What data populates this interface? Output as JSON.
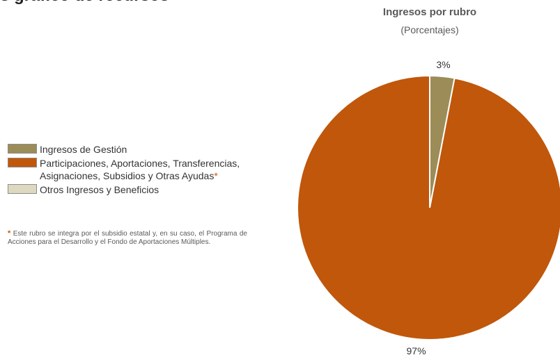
{
  "page": {
    "heading_fragment": "s gráfico de recursos"
  },
  "chart_data": {
    "type": "pie",
    "title": "Ingresos por rubro",
    "subtitle": "(Porcentajes)",
    "categories": [
      "Ingresos de Gestión",
      "Participaciones, Aportaciones, Transferencias, Asignaciones, Subsidios y Otras Ayudas*",
      "Otros Ingresos y Beneficios"
    ],
    "values": [
      3,
      97,
      0
    ],
    "data_labels": [
      "3%",
      "97%",
      ""
    ],
    "colors": [
      "#9c8c58",
      "#c0570b",
      "#ddd8c0"
    ],
    "legend_placement": "left"
  },
  "legend": {
    "items": [
      {
        "label_line1": "Ingresos de Gestión",
        "label_line2": "",
        "asterisk": "",
        "color": "#9c8c58"
      },
      {
        "label_line1": "Participaciones, Aportaciones, Transferencias,",
        "label_line2": "Asignaciones, Subsidios y Otras Ayudas",
        "asterisk": "*",
        "color": "#c0570b"
      },
      {
        "label_line1": "Otros Ingresos y Beneficios",
        "label_line2": "",
        "asterisk": "",
        "color": "#ddd8c0"
      }
    ]
  },
  "footnote": {
    "asterisk": "*",
    "text": " Este rubro se integra por el subsidio estatal y, en su caso, el Programa de Acciones para el Desarrollo y el Fondo de Aportaciones Múltiples."
  }
}
